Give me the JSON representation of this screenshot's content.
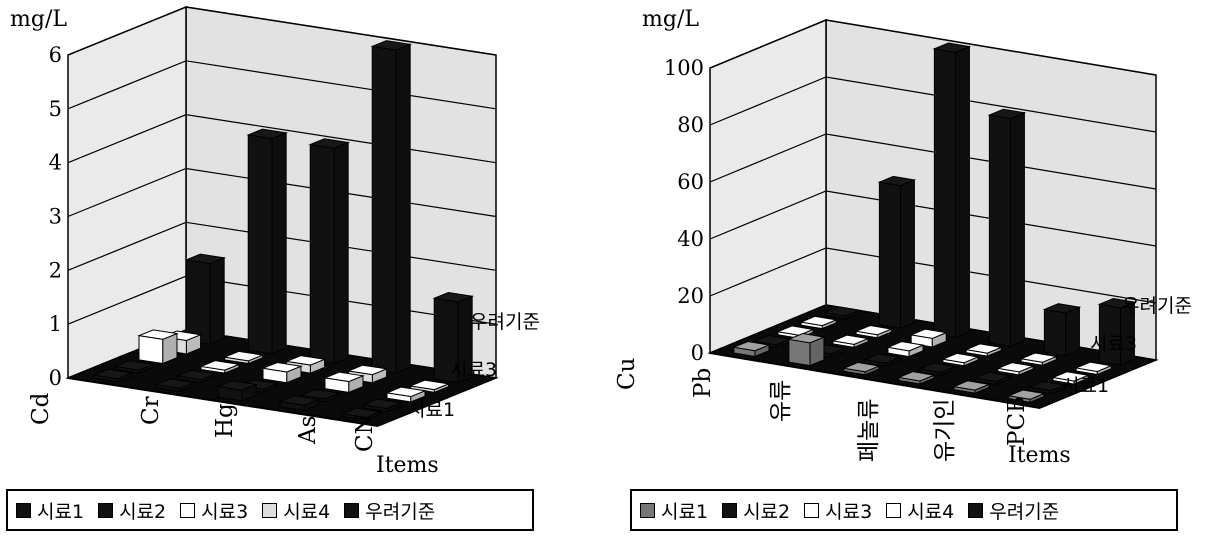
{
  "chart_data": [
    {
      "type": "bar",
      "ylabel": "mg/L",
      "xlabel": "Items",
      "categories": [
        "Cd",
        "Cr",
        "Hg",
        "As",
        "CN"
      ],
      "depth_labels": [
        "시료1",
        "시료3",
        "우려기준"
      ],
      "yticks": [
        0,
        1,
        2,
        3,
        4,
        5,
        6
      ],
      "ylim": [
        0,
        6
      ],
      "series": [
        {
          "name": "시료1",
          "values": [
            0,
            0,
            0.2,
            0.1,
            0.05
          ]
        },
        {
          "name": "시료2",
          "values": [
            0,
            0,
            0,
            0,
            0
          ]
        },
        {
          "name": "시료3",
          "values": [
            0.45,
            0,
            0.2,
            0.2,
            0.1
          ]
        },
        {
          "name": "시료4",
          "values": [
            0.25,
            0.05,
            0.15,
            0.15,
            0.05
          ]
        },
        {
          "name": "우려기준",
          "values": [
            1.5,
            4,
            4,
            6,
            1.5
          ]
        }
      ],
      "legend": {
        "position": "bottom",
        "items": [
          {
            "label": "시료1",
            "swatch": "#111111"
          },
          {
            "label": "시료2",
            "swatch": "#111111"
          },
          {
            "label": "시료3",
            "swatch": "#ffffff"
          },
          {
            "label": "시료4",
            "swatch": "#dddddd"
          },
          {
            "label": "우려기준",
            "swatch": "#111111"
          }
        ]
      },
      "grid": true
    },
    {
      "type": "bar",
      "ylabel": "mg/L",
      "xlabel": "Items",
      "categories": [
        "Cu",
        "Pb",
        "유류",
        "페놀류",
        "유기인",
        "PCB"
      ],
      "depth_labels": [
        "시료1",
        "시료3",
        "우려기준"
      ],
      "yticks": [
        0,
        20,
        40,
        60,
        80,
        100
      ],
      "ylim": [
        0,
        100
      ],
      "series": [
        {
          "name": "시료1",
          "values": [
            2,
            8,
            0,
            0,
            0,
            0
          ]
        },
        {
          "name": "시료2",
          "values": [
            0,
            0,
            0,
            0,
            0,
            0
          ]
        },
        {
          "name": "시료3",
          "values": [
            0,
            0,
            2,
            0,
            0,
            0
          ]
        },
        {
          "name": "시료4",
          "values": [
            0,
            0,
            3,
            0,
            0,
            0
          ]
        },
        {
          "name": "우려기준",
          "values": [
            0,
            50,
            100,
            80,
            15,
            20
          ]
        }
      ],
      "legend": {
        "position": "bottom",
        "items": [
          {
            "label": "시료1",
            "swatch": "#777777"
          },
          {
            "label": "시료2",
            "swatch": "#111111"
          },
          {
            "label": "시료3",
            "swatch": "#ffffff"
          },
          {
            "label": "시료4",
            "swatch": "#ffffff"
          },
          {
            "label": "우려기준",
            "swatch": "#111111"
          }
        ]
      },
      "grid": true
    }
  ]
}
